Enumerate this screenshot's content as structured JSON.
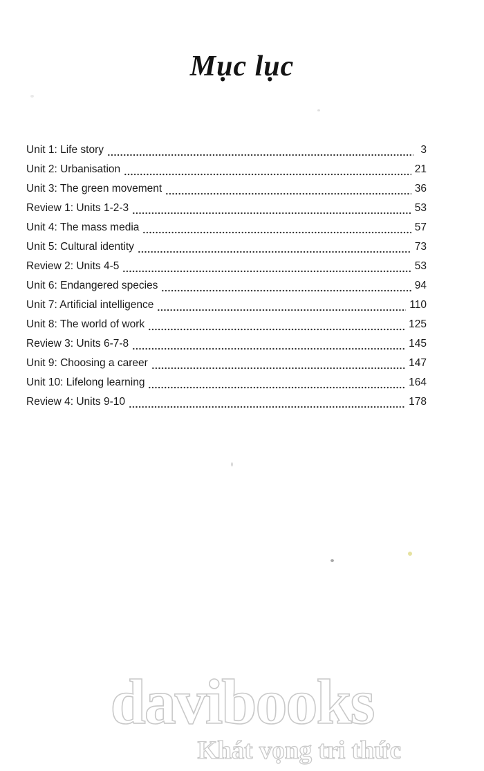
{
  "page_title": "Mục lục",
  "toc": {
    "items": [
      {
        "label": "Unit 1: Life story",
        "page": "3"
      },
      {
        "label": "Unit 2: Urbanisation",
        "page": "21"
      },
      {
        "label": "Unit 3: The green movement",
        "page": "36"
      },
      {
        "label": "Review 1: Units 1-2-3",
        "page": "53"
      },
      {
        "label": "Unit 4: The mass media",
        "page": "57"
      },
      {
        "label": "Unit 5: Cultural identity",
        "page": "73"
      },
      {
        "label": "Review 2: Units 4-5",
        "page": "53"
      },
      {
        "label": "Unit 6: Endangered species",
        "page": "94"
      },
      {
        "label": "Unit 7: Artificial intelligence",
        "page": "110"
      },
      {
        "label": "Unit 8: The world of work",
        "page": "125"
      },
      {
        "label": "Review 3: Units 6-7-8",
        "page": "145"
      },
      {
        "label": "Unit 9: Choosing a career",
        "page": "147"
      },
      {
        "label": "Unit 10: Lifelong learning",
        "page": "164"
      },
      {
        "label": "Review 4: Units 9-10",
        "page": "178"
      }
    ]
  },
  "watermark": {
    "brand": "davibooks",
    "tagline": "Khát vọng tri thức",
    "outline_color": "#c9c9c9"
  },
  "colors": {
    "background": "#ffffff",
    "text": "#1b1b1b"
  }
}
